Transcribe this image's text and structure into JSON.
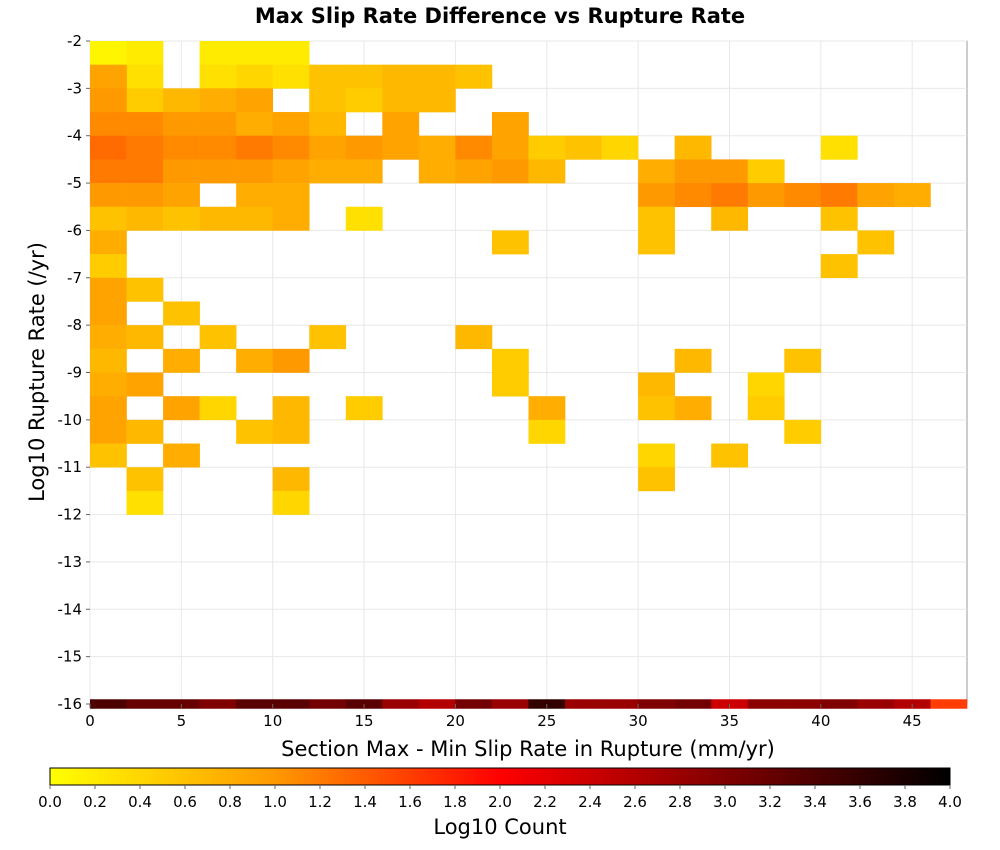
{
  "chart_data": {
    "type": "heatmap",
    "title": "Max Slip Rate Difference vs Rupture Rate",
    "xlabel": "Section Max - Min Slip Rate in Rupture (mm/yr)",
    "ylabel": "Log10 Rupture Rate (/yr)",
    "xlim": [
      0,
      48
    ],
    "ylim": [
      -16,
      -2
    ],
    "x_ticks": [
      "0",
      "5",
      "10",
      "15",
      "20",
      "25",
      "30",
      "35",
      "40",
      "45"
    ],
    "y_ticks": [
      "-2",
      "-3",
      "-4",
      "-5",
      "-6",
      "-7",
      "-8",
      "-9",
      "-10",
      "-11",
      "-12",
      "-13",
      "-14",
      "-15",
      "-16"
    ],
    "x_bin_width": 2,
    "y_bin_height": 0.5,
    "grid": true,
    "colorbar": {
      "label": "Log10 Count",
      "min": 0.0,
      "max": 4.0,
      "ticks": [
        "0.0",
        "0.2",
        "0.4",
        "0.6",
        "0.8",
        "1.0",
        "1.2",
        "1.4",
        "1.6",
        "1.8",
        "2.0",
        "2.2",
        "2.4",
        "2.6",
        "2.8",
        "3.0",
        "3.2",
        "3.4",
        "3.6",
        "3.8",
        "4.0"
      ],
      "colors": [
        "#ffff00",
        "#ff9900",
        "#ff0000",
        "#800000",
        "#000000"
      ]
    },
    "cells": [
      {
        "x": 0,
        "y": -2.25,
        "v": 0.1
      },
      {
        "x": 2,
        "y": -2.25,
        "v": 0.2
      },
      {
        "x": 2,
        "y": -2.75,
        "v": 0.3
      },
      {
        "x": 2,
        "y": -3.25,
        "v": 0.5
      },
      {
        "x": 6,
        "y": -2.25,
        "v": 0.2
      },
      {
        "x": 8,
        "y": -2.25,
        "v": 0.2
      },
      {
        "x": 10,
        "y": -2.25,
        "v": 0.2
      },
      {
        "x": 8,
        "y": -2.75,
        "v": 0.4
      },
      {
        "x": 6,
        "y": -2.75,
        "v": 0.3
      },
      {
        "x": 10,
        "y": -2.75,
        "v": 0.3
      },
      {
        "x": 12,
        "y": -2.75,
        "v": 0.6
      },
      {
        "x": 14,
        "y": -2.75,
        "v": 0.6
      },
      {
        "x": 16,
        "y": -2.75,
        "v": 0.7
      },
      {
        "x": 18,
        "y": -2.75,
        "v": 0.7
      },
      {
        "x": 20,
        "y": -2.75,
        "v": 0.6
      },
      {
        "x": 0,
        "y": -2.75,
        "v": 0.9
      },
      {
        "x": 0,
        "y": -3.25,
        "v": 1.0
      },
      {
        "x": 0,
        "y": -3.75,
        "v": 1.1
      },
      {
        "x": 0,
        "y": -4.25,
        "v": 1.3
      },
      {
        "x": 0,
        "y": -4.75,
        "v": 1.2
      },
      {
        "x": 0,
        "y": -5.25,
        "v": 1.0
      },
      {
        "x": 2,
        "y": -3.75,
        "v": 1.1
      },
      {
        "x": 2,
        "y": -4.25,
        "v": 1.2
      },
      {
        "x": 2,
        "y": -4.75,
        "v": 1.2
      },
      {
        "x": 2,
        "y": -5.25,
        "v": 1.0
      },
      {
        "x": 4,
        "y": -3.25,
        "v": 0.7
      },
      {
        "x": 4,
        "y": -3.75,
        "v": 1.0
      },
      {
        "x": 4,
        "y": -4.25,
        "v": 1.1
      },
      {
        "x": 4,
        "y": -4.75,
        "v": 1.0
      },
      {
        "x": 4,
        "y": -5.25,
        "v": 0.9
      },
      {
        "x": 6,
        "y": -3.25,
        "v": 0.8
      },
      {
        "x": 6,
        "y": -3.75,
        "v": 1.0
      },
      {
        "x": 6,
        "y": -4.25,
        "v": 1.1
      },
      {
        "x": 6,
        "y": -4.75,
        "v": 1.0
      },
      {
        "x": 8,
        "y": -3.25,
        "v": 0.9
      },
      {
        "x": 8,
        "y": -3.75,
        "v": 0.8
      },
      {
        "x": 8,
        "y": -4.25,
        "v": 1.2
      },
      {
        "x": 8,
        "y": -4.75,
        "v": 1.0
      },
      {
        "x": 8,
        "y": -5.25,
        "v": 0.8
      },
      {
        "x": 10,
        "y": -3.75,
        "v": 0.9
      },
      {
        "x": 10,
        "y": -4.25,
        "v": 1.1
      },
      {
        "x": 10,
        "y": -4.75,
        "v": 0.9
      },
      {
        "x": 10,
        "y": -5.25,
        "v": 0.8
      },
      {
        "x": 12,
        "y": -3.25,
        "v": 0.6
      },
      {
        "x": 12,
        "y": -3.75,
        "v": 0.7
      },
      {
        "x": 12,
        "y": -4.25,
        "v": 0.9
      },
      {
        "x": 12,
        "y": -4.75,
        "v": 0.8
      },
      {
        "x": 14,
        "y": -3.25,
        "v": 0.5
      },
      {
        "x": 14,
        "y": -4.25,
        "v": 1.0
      },
      {
        "x": 14,
        "y": -4.75,
        "v": 0.8
      },
      {
        "x": 16,
        "y": -3.25,
        "v": 0.7
      },
      {
        "x": 16,
        "y": -3.75,
        "v": 0.9
      },
      {
        "x": 16,
        "y": -4.25,
        "v": 0.9
      },
      {
        "x": 18,
        "y": -3.25,
        "v": 0.7
      },
      {
        "x": 18,
        "y": -4.25,
        "v": 0.8
      },
      {
        "x": 18,
        "y": -4.75,
        "v": 0.8
      },
      {
        "x": 20,
        "y": -4.25,
        "v": 1.1
      },
      {
        "x": 20,
        "y": -4.75,
        "v": 0.9
      },
      {
        "x": 22,
        "y": -3.75,
        "v": 0.9
      },
      {
        "x": 22,
        "y": -4.25,
        "v": 0.9
      },
      {
        "x": 22,
        "y": -4.75,
        "v": 1.0
      },
      {
        "x": 24,
        "y": -4.25,
        "v": 0.5
      },
      {
        "x": 24,
        "y": -4.75,
        "v": 0.7
      },
      {
        "x": 26,
        "y": -4.25,
        "v": 0.6
      },
      {
        "x": 28,
        "y": -4.25,
        "v": 0.4
      },
      {
        "x": 30,
        "y": -4.75,
        "v": 0.8
      },
      {
        "x": 30,
        "y": -5.25,
        "v": 1.0
      },
      {
        "x": 32,
        "y": -4.25,
        "v": 0.7
      },
      {
        "x": 32,
        "y": -4.75,
        "v": 1.0
      },
      {
        "x": 32,
        "y": -5.25,
        "v": 1.1
      },
      {
        "x": 34,
        "y": -4.75,
        "v": 1.0
      },
      {
        "x": 34,
        "y": -5.25,
        "v": 1.2
      },
      {
        "x": 36,
        "y": -4.75,
        "v": 0.5
      },
      {
        "x": 36,
        "y": -5.25,
        "v": 1.0
      },
      {
        "x": 38,
        "y": -5.25,
        "v": 1.1
      },
      {
        "x": 40,
        "y": -4.25,
        "v": 0.3
      },
      {
        "x": 40,
        "y": -5.25,
        "v": 1.2
      },
      {
        "x": 42,
        "y": -5.25,
        "v": 0.9
      },
      {
        "x": 44,
        "y": -5.25,
        "v": 0.8
      },
      {
        "x": 0,
        "y": -5.75,
        "v": 0.6
      },
      {
        "x": 0,
        "y": -6.25,
        "v": 0.8
      },
      {
        "x": 0,
        "y": -6.75,
        "v": 0.5
      },
      {
        "x": 0,
        "y": -7.25,
        "v": 0.9
      },
      {
        "x": 0,
        "y": -7.75,
        "v": 0.9
      },
      {
        "x": 0,
        "y": -8.25,
        "v": 0.8
      },
      {
        "x": 0,
        "y": -8.75,
        "v": 0.7
      },
      {
        "x": 0,
        "y": -9.25,
        "v": 0.8
      },
      {
        "x": 0,
        "y": -9.75,
        "v": 0.9
      },
      {
        "x": 0,
        "y": -10.25,
        "v": 0.9
      },
      {
        "x": 0,
        "y": -10.75,
        "v": 0.6
      },
      {
        "x": 2,
        "y": -5.75,
        "v": 0.7
      },
      {
        "x": 2,
        "y": -7.25,
        "v": 0.6
      },
      {
        "x": 2,
        "y": -8.25,
        "v": 0.7
      },
      {
        "x": 2,
        "y": -9.25,
        "v": 0.9
      },
      {
        "x": 2,
        "y": -10.25,
        "v": 0.7
      },
      {
        "x": 2,
        "y": -11.25,
        "v": 0.6
      },
      {
        "x": 2,
        "y": -11.75,
        "v": 0.3
      },
      {
        "x": 4,
        "y": -5.75,
        "v": 0.6
      },
      {
        "x": 4,
        "y": -7.75,
        "v": 0.6
      },
      {
        "x": 4,
        "y": -8.75,
        "v": 0.8
      },
      {
        "x": 4,
        "y": -9.75,
        "v": 0.9
      },
      {
        "x": 4,
        "y": -10.75,
        "v": 0.8
      },
      {
        "x": 6,
        "y": -5.75,
        "v": 0.7
      },
      {
        "x": 6,
        "y": -8.25,
        "v": 0.6
      },
      {
        "x": 6,
        "y": -9.75,
        "v": 0.4
      },
      {
        "x": 8,
        "y": -5.75,
        "v": 0.7
      },
      {
        "x": 8,
        "y": -8.75,
        "v": 0.8
      },
      {
        "x": 8,
        "y": -10.25,
        "v": 0.6
      },
      {
        "x": 10,
        "y": -5.75,
        "v": 0.8
      },
      {
        "x": 10,
        "y": -8.75,
        "v": 1.0
      },
      {
        "x": 10,
        "y": -9.75,
        "v": 0.7
      },
      {
        "x": 10,
        "y": -10.25,
        "v": 0.7
      },
      {
        "x": 10,
        "y": -11.25,
        "v": 0.7
      },
      {
        "x": 10,
        "y": -11.75,
        "v": 0.4
      },
      {
        "x": 12,
        "y": -8.25,
        "v": 0.6
      },
      {
        "x": 14,
        "y": -5.75,
        "v": 0.3
      },
      {
        "x": 14,
        "y": -9.75,
        "v": 0.5
      },
      {
        "x": 20,
        "y": -8.25,
        "v": 0.7
      },
      {
        "x": 22,
        "y": -6.25,
        "v": 0.6
      },
      {
        "x": 22,
        "y": -8.75,
        "v": 0.5
      },
      {
        "x": 22,
        "y": -9.25,
        "v": 0.5
      },
      {
        "x": 24,
        "y": -9.75,
        "v": 0.8
      },
      {
        "x": 24,
        "y": -10.25,
        "v": 0.4
      },
      {
        "x": 30,
        "y": -5.75,
        "v": 0.6
      },
      {
        "x": 30,
        "y": -6.25,
        "v": 0.6
      },
      {
        "x": 30,
        "y": -9.25,
        "v": 0.7
      },
      {
        "x": 30,
        "y": -9.75,
        "v": 0.6
      },
      {
        "x": 30,
        "y": -10.75,
        "v": 0.4
      },
      {
        "x": 30,
        "y": -11.25,
        "v": 0.6
      },
      {
        "x": 32,
        "y": -8.75,
        "v": 0.7
      },
      {
        "x": 32,
        "y": -9.75,
        "v": 0.8
      },
      {
        "x": 34,
        "y": -5.75,
        "v": 0.7
      },
      {
        "x": 34,
        "y": -10.75,
        "v": 0.6
      },
      {
        "x": 36,
        "y": -9.25,
        "v": 0.4
      },
      {
        "x": 36,
        "y": -9.75,
        "v": 0.5
      },
      {
        "x": 38,
        "y": -8.75,
        "v": 0.6
      },
      {
        "x": 38,
        "y": -10.25,
        "v": 0.5
      },
      {
        "x": 40,
        "y": -5.75,
        "v": 0.6
      },
      {
        "x": 40,
        "y": -6.75,
        "v": 0.6
      },
      {
        "x": 42,
        "y": -6.25,
        "v": 0.6
      }
    ],
    "bottom_row": {
      "y": -16,
      "values": [
        3.4,
        3.2,
        3.2,
        3.0,
        3.3,
        3.3,
        3.1,
        3.3,
        2.8,
        2.6,
        3.1,
        2.8,
        3.6,
        2.8,
        2.8,
        3.0,
        3.1,
        2.4,
        2.9,
        2.9,
        3.0,
        2.8,
        2.6,
        1.6
      ]
    }
  }
}
